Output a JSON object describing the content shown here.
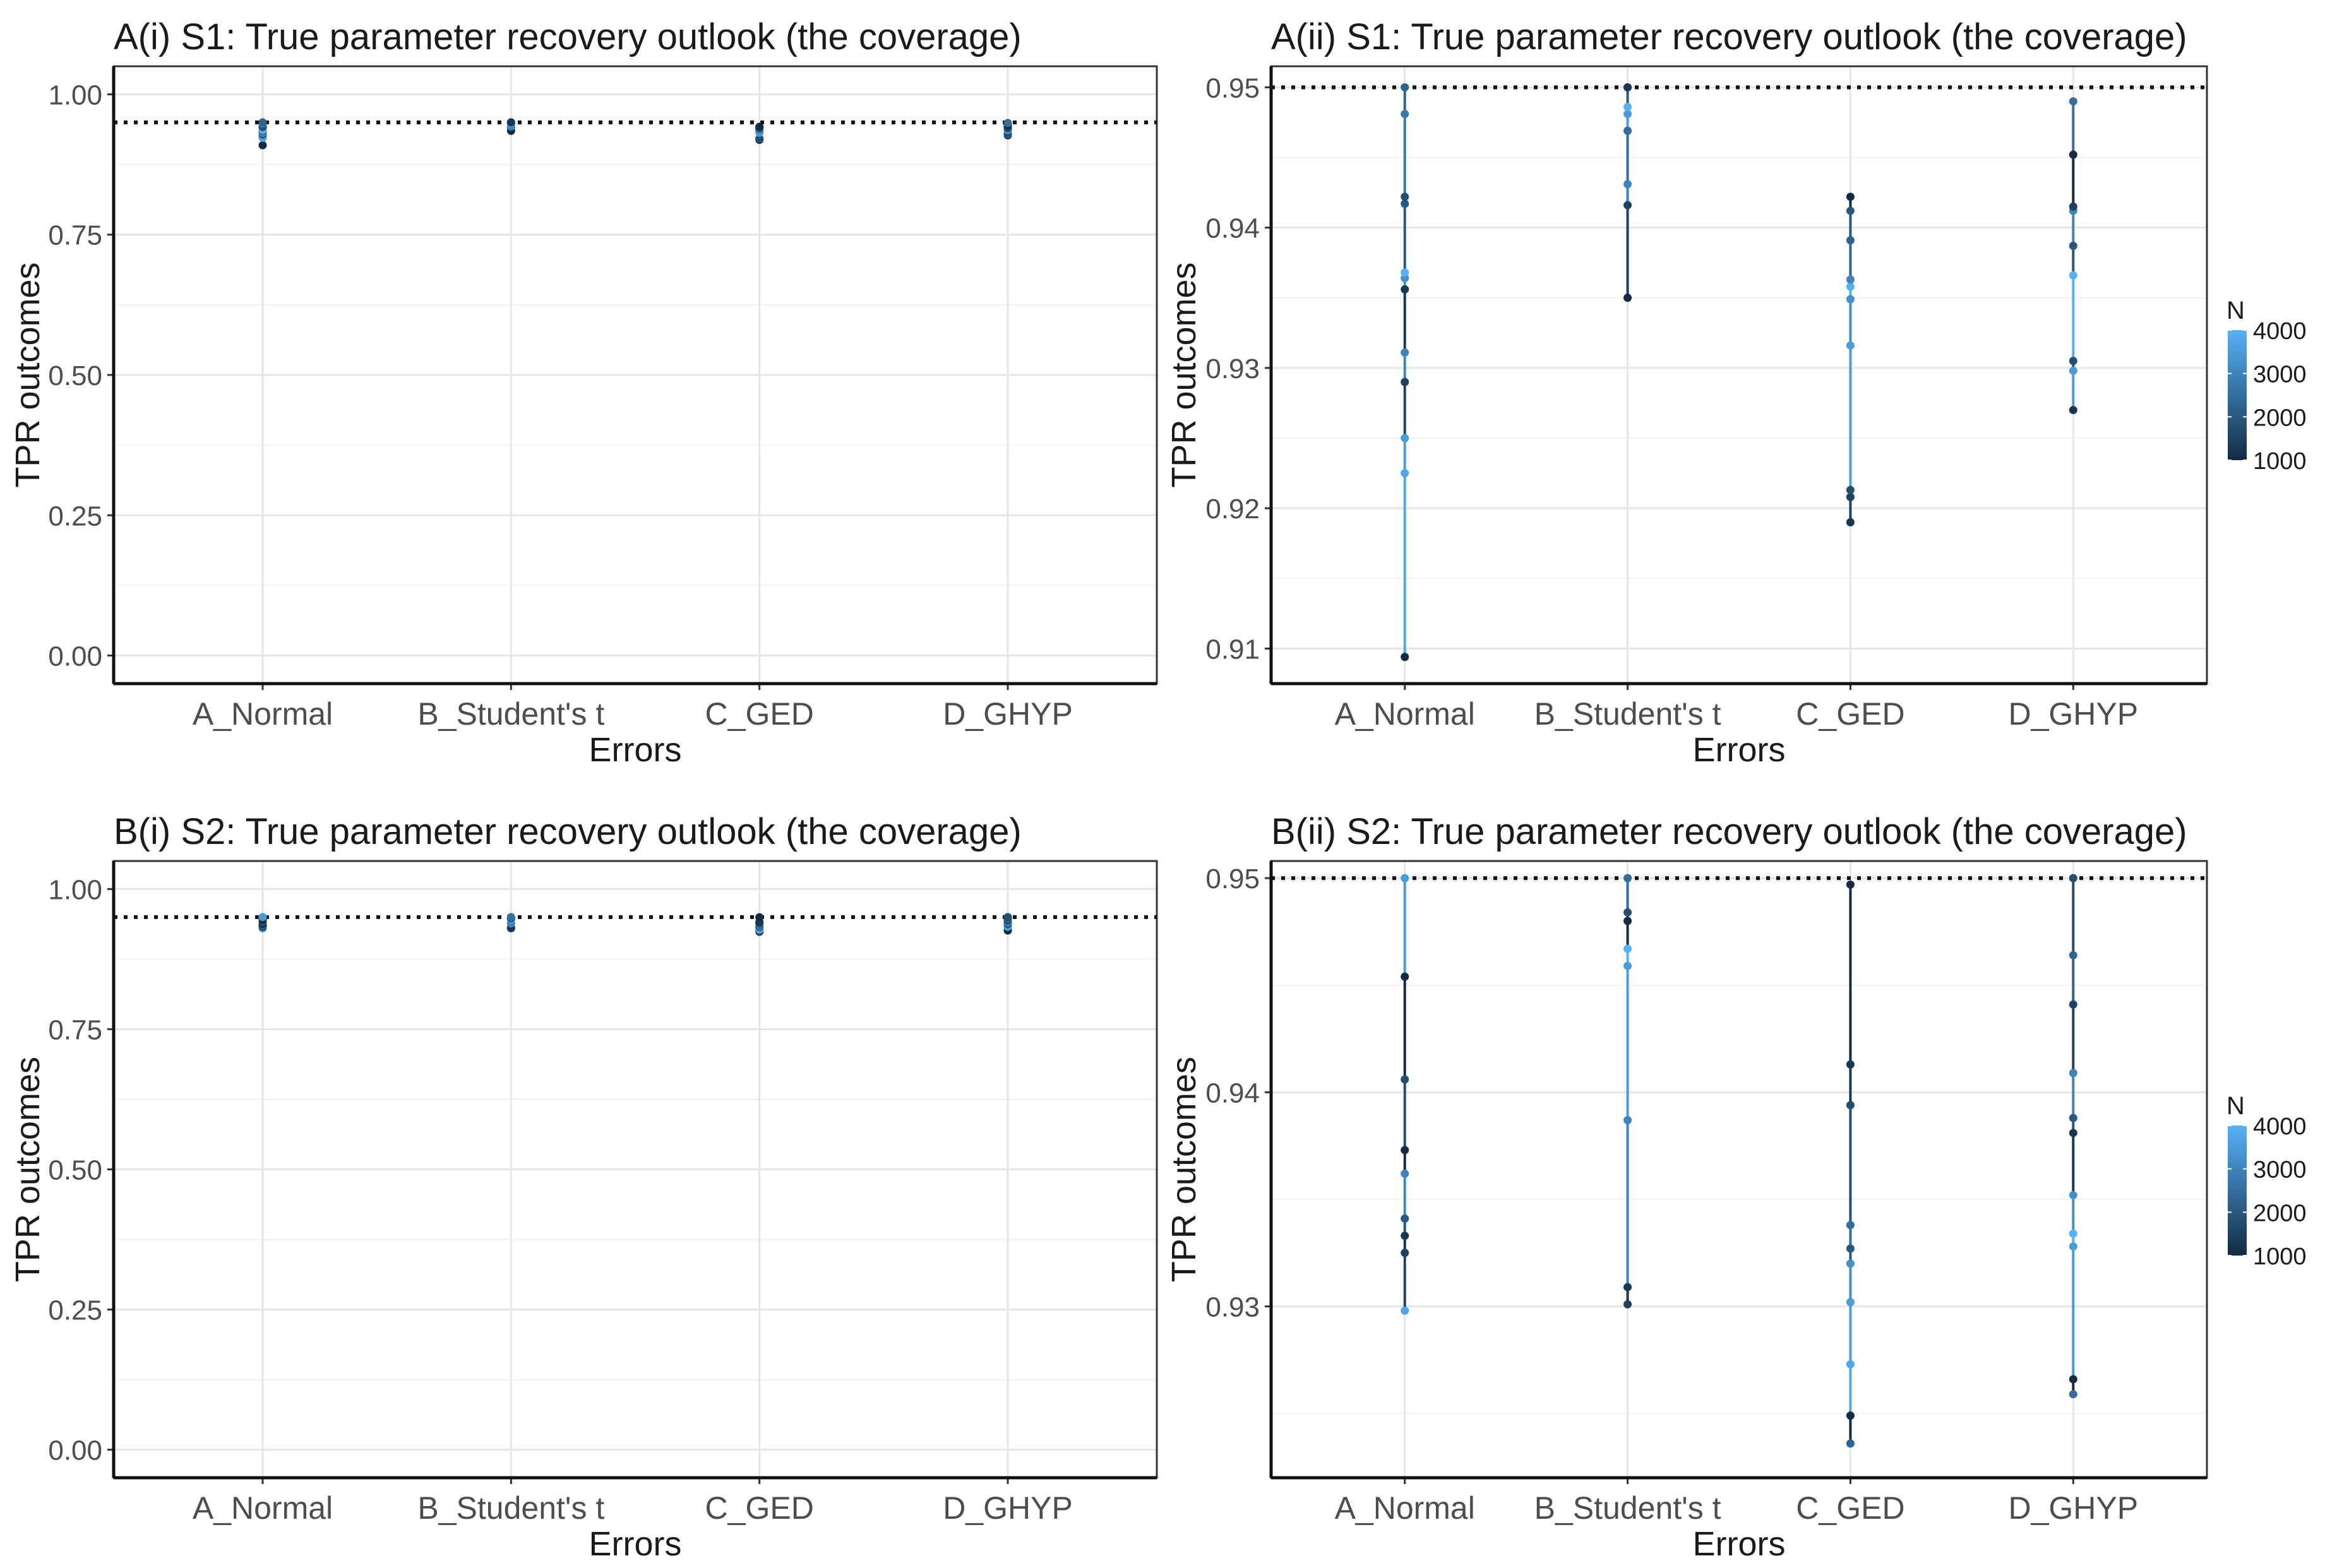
{
  "figure": {
    "title": ""
  },
  "chart_data": [
    {
      "type": "scatter",
      "title": "A(i) S1: True parameter recovery outlook (the coverage)",
      "xlabel": "Errors",
      "ylabel": "TPR outcomes",
      "categories": [
        "A_Normal",
        "B_Student's t",
        "C_GED",
        "D_GHYP"
      ],
      "ylim": [
        -0.05,
        1.05
      ],
      "yticks": [
        0,
        0.25,
        0.5,
        0.75,
        1
      ],
      "ytick_labels": [
        "0.00",
        "0.25",
        "0.50",
        "0.75",
        "1.00"
      ],
      "reference_line": 0.95,
      "grid": true,
      "legend": null,
      "color_scale": {
        "low": "#132b43",
        "high": "#56b1f7",
        "min": 1000,
        "max": 4000
      },
      "series": [
        {
          "category": "A_Normal",
          "y": [
            0.9094,
            0.9225,
            0.925,
            0.929,
            0.9311,
            0.9356,
            0.9364,
            0.9368,
            0.9417,
            0.9422,
            0.9481,
            0.95
          ],
          "n": [
            1000,
            3750,
            3500,
            1500,
            3000,
            1250,
            3250,
            4000,
            2000,
            1750,
            2750,
            2250
          ]
        },
        {
          "category": "B_Student's t",
          "y": [
            0.935,
            0.9416,
            0.9431,
            0.9469,
            0.9481,
            0.9486,
            0.95,
            0.95
          ],
          "n": [
            1000,
            1500,
            3000,
            2500,
            3500,
            4000,
            2000,
            1250
          ]
        },
        {
          "category": "C_GED",
          "y": [
            0.919,
            0.9208,
            0.9213,
            0.9316,
            0.9349,
            0.9358,
            0.9363,
            0.9391,
            0.9412,
            0.9422
          ],
          "n": [
            1250,
            1500,
            1750,
            3500,
            3250,
            4000,
            3000,
            2250,
            2000,
            1000
          ]
        },
        {
          "category": "D_GHYP",
          "y": [
            0.927,
            0.9298,
            0.9305,
            0.9366,
            0.9387,
            0.9412,
            0.9415,
            0.9452,
            0.949
          ],
          "n": [
            1250,
            3500,
            1750,
            4000,
            2000,
            3000,
            1500,
            1000,
            2500
          ]
        }
      ]
    },
    {
      "type": "scatter",
      "title": "A(ii) S1: True parameter recovery outlook (the coverage)",
      "xlabel": "Errors",
      "ylabel": "TPR outcomes",
      "categories": [
        "A_Normal",
        "B_Student's t",
        "C_GED",
        "D_GHYP"
      ],
      "ylim": [
        0.9075,
        0.9515
      ],
      "yticks": [
        0.91,
        0.92,
        0.93,
        0.94,
        0.95
      ],
      "ytick_labels": [
        "0.91",
        "0.92",
        "0.93",
        "0.94",
        "0.95"
      ],
      "reference_line": 0.95,
      "grid": true,
      "legend": {
        "title": "N",
        "position": "right",
        "labels": [
          "4000",
          "3000",
          "2000",
          "1000"
        ]
      },
      "color_scale": {
        "low": "#132b43",
        "high": "#56b1f7",
        "min": 1000,
        "max": 4000
      },
      "series": [
        {
          "category": "A_Normal",
          "y": [
            0.9094,
            0.9225,
            0.925,
            0.929,
            0.9311,
            0.9356,
            0.9364,
            0.9368,
            0.9417,
            0.9422,
            0.9481,
            0.95
          ],
          "n": [
            1000,
            3750,
            3500,
            1500,
            3000,
            1250,
            3250,
            4000,
            2000,
            1750,
            2750,
            2250
          ]
        },
        {
          "category": "B_Student's t",
          "y": [
            0.935,
            0.9416,
            0.9431,
            0.9469,
            0.9481,
            0.9486,
            0.95,
            0.95
          ],
          "n": [
            1000,
            1500,
            3000,
            2500,
            3500,
            4000,
            2000,
            1250
          ]
        },
        {
          "category": "C_GED",
          "y": [
            0.919,
            0.9208,
            0.9213,
            0.9316,
            0.9349,
            0.9358,
            0.9363,
            0.9391,
            0.9412,
            0.9422
          ],
          "n": [
            1250,
            1500,
            1750,
            3500,
            3250,
            4000,
            3000,
            2250,
            2000,
            1000
          ]
        },
        {
          "category": "D_GHYP",
          "y": [
            0.927,
            0.9298,
            0.9305,
            0.9366,
            0.9387,
            0.9412,
            0.9415,
            0.9452,
            0.949
          ],
          "n": [
            1250,
            3500,
            1750,
            4000,
            2000,
            3000,
            1500,
            1000,
            2500
          ]
        }
      ]
    },
    {
      "type": "scatter",
      "title": "B(i) S2: True parameter recovery outlook (the coverage)",
      "xlabel": "Errors",
      "ylabel": "TPR outcomes",
      "categories": [
        "A_Normal",
        "B_Student's t",
        "C_GED",
        "D_GHYP"
      ],
      "ylim": [
        -0.05,
        1.05
      ],
      "yticks": [
        0,
        0.25,
        0.5,
        0.75,
        1
      ],
      "ytick_labels": [
        "0.00",
        "0.25",
        "0.50",
        "0.75",
        "1.00"
      ],
      "reference_line": 0.95,
      "grid": true,
      "legend": null,
      "color_scale": {
        "low": "#132b43",
        "high": "#56b1f7",
        "min": 1000,
        "max": 4000
      },
      "series": [
        {
          "category": "A_Normal",
          "y": [
            0.9298,
            0.9325,
            0.9333,
            0.9341,
            0.9362,
            0.9373,
            0.9406,
            0.9454,
            0.95
          ],
          "n": [
            3750,
            1500,
            1250,
            2000,
            3000,
            1000,
            1750,
            1000,
            3500
          ]
        },
        {
          "category": "B_Student's t",
          "y": [
            0.9301,
            0.9309,
            0.9387,
            0.9459,
            0.9467,
            0.948,
            0.9484,
            0.95
          ],
          "n": [
            1500,
            1250,
            3000,
            3500,
            4000,
            1000,
            1750,
            2500
          ]
        },
        {
          "category": "C_GED",
          "y": [
            0.9236,
            0.9249,
            0.9273,
            0.9302,
            0.932,
            0.9327,
            0.9338,
            0.9394,
            0.9413,
            0.9497
          ],
          "n": [
            2250,
            1000,
            3750,
            3500,
            3250,
            2000,
            2500,
            1750,
            1250,
            1000
          ]
        },
        {
          "category": "D_GHYP",
          "y": [
            0.9259,
            0.9266,
            0.9328,
            0.9334,
            0.9352,
            0.9381,
            0.9388,
            0.9409,
            0.9441,
            0.9464,
            0.95
          ],
          "n": [
            2500,
            1000,
            3500,
            4000,
            3250,
            1250,
            2000,
            3000,
            1500,
            2250,
            1750
          ]
        }
      ]
    },
    {
      "type": "scatter",
      "title": "B(ii) S2: True parameter recovery outlook (the coverage)",
      "xlabel": "Errors",
      "ylabel": "TPR outcomes",
      "categories": [
        "A_Normal",
        "B_Student's t",
        "C_GED",
        "D_GHYP"
      ],
      "ylim": [
        0.922,
        0.9508
      ],
      "yticks": [
        0.93,
        0.94,
        0.95
      ],
      "ytick_labels": [
        "0.93",
        "0.94",
        "0.95"
      ],
      "reference_line": 0.95,
      "grid": true,
      "legend": {
        "title": "N",
        "position": "right",
        "labels": [
          "4000",
          "3000",
          "2000",
          "1000"
        ]
      },
      "color_scale": {
        "low": "#132b43",
        "high": "#56b1f7",
        "min": 1000,
        "max": 4000
      },
      "series": [
        {
          "category": "A_Normal",
          "y": [
            0.9298,
            0.9325,
            0.9333,
            0.9341,
            0.9362,
            0.9373,
            0.9406,
            0.9454,
            0.95
          ],
          "n": [
            3750,
            1500,
            1250,
            2000,
            3000,
            1000,
            1750,
            1000,
            3500
          ]
        },
        {
          "category": "B_Student's t",
          "y": [
            0.9301,
            0.9309,
            0.9387,
            0.9459,
            0.9467,
            0.948,
            0.9484,
            0.95
          ],
          "n": [
            1500,
            1250,
            3000,
            3500,
            4000,
            1000,
            1750,
            2500
          ]
        },
        {
          "category": "C_GED",
          "y": [
            0.9236,
            0.9249,
            0.9273,
            0.9302,
            0.932,
            0.9327,
            0.9338,
            0.9394,
            0.9413,
            0.9497
          ],
          "n": [
            2250,
            1000,
            3750,
            3500,
            3250,
            2000,
            2500,
            1750,
            1250,
            1000
          ]
        },
        {
          "category": "D_GHYP",
          "y": [
            0.9259,
            0.9266,
            0.9328,
            0.9334,
            0.9352,
            0.9381,
            0.9388,
            0.9409,
            0.9441,
            0.9464,
            0.95
          ],
          "n": [
            2500,
            1000,
            3500,
            4000,
            3250,
            1250,
            2000,
            3000,
            1500,
            2250,
            1750
          ]
        }
      ]
    }
  ]
}
